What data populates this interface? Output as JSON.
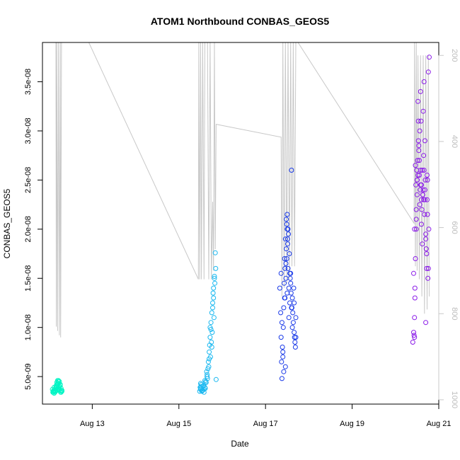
{
  "chart_data": {
    "type": "scatter",
    "title": "ATOM1 Northbound CONBAS_GEOS5",
    "xlabel": "Date",
    "ylabel": "CONBAS_GEOS5",
    "xlim_days": [
      11.85,
      21.0
    ],
    "ylim": [
      2.2e-09,
      3.9e-08
    ],
    "x_ticks": [
      {
        "day": 13,
        "label": "Aug 13"
      },
      {
        "day": 15,
        "label": "Aug 15"
      },
      {
        "day": 17,
        "label": "Aug 17"
      },
      {
        "day": 19,
        "label": "Aug 19"
      },
      {
        "day": 21,
        "label": "Aug 21"
      }
    ],
    "y_ticks": [
      {
        "value": 5e-09,
        "label": "5.0e-09"
      },
      {
        "value": 1e-08,
        "label": "1.0e-08"
      },
      {
        "value": 1.5e-08,
        "label": "1.5e-08"
      },
      {
        "value": 2e-08,
        "label": "2.0e-08"
      },
      {
        "value": 2.5e-08,
        "label": "2.5e-08"
      },
      {
        "value": 3e-08,
        "label": "3.0e-08"
      },
      {
        "value": 3.5e-08,
        "label": "3.5e-08"
      }
    ],
    "secondary_axis": {
      "label": "",
      "reversed": true,
      "range": [
        170,
        1010
      ],
      "ticks": [
        {
          "value": 200,
          "label": "200"
        },
        {
          "value": 400,
          "label": "400"
        },
        {
          "value": 600,
          "label": "600"
        },
        {
          "value": 800,
          "label": "800"
        },
        {
          "value": 1000,
          "label": "1000"
        }
      ],
      "color": "#c8c8c8"
    },
    "altitude_trace": {
      "color": "#c8c8c8",
      "points": [
        [
          12.16,
          170
        ],
        [
          12.17,
          830
        ],
        [
          12.18,
          170
        ],
        [
          12.2,
          840
        ],
        [
          12.22,
          170
        ],
        [
          12.24,
          850
        ],
        [
          12.26,
          170
        ],
        [
          12.27,
          855
        ],
        [
          12.29,
          170
        ],
        [
          12.31,
          170
        ],
        [
          12.92,
          170
        ],
        [
          15.45,
          720
        ],
        [
          15.46,
          170
        ],
        [
          15.48,
          720
        ],
        [
          15.5,
          170
        ],
        [
          15.52,
          720
        ],
        [
          15.55,
          170
        ],
        [
          15.58,
          720
        ],
        [
          15.6,
          170
        ],
        [
          15.66,
          170
        ],
        [
          15.69,
          720
        ],
        [
          15.72,
          170
        ],
        [
          15.75,
          720
        ],
        [
          15.78,
          540
        ],
        [
          15.8,
          700
        ],
        [
          15.82,
          170
        ],
        [
          15.84,
          650
        ],
        [
          15.86,
          360
        ],
        [
          17.36,
          390
        ],
        [
          17.38,
          760
        ],
        [
          17.4,
          170
        ],
        [
          17.43,
          740
        ],
        [
          17.46,
          170
        ],
        [
          17.49,
          730
        ],
        [
          17.52,
          170
        ],
        [
          17.55,
          720
        ],
        [
          17.58,
          170
        ],
        [
          17.61,
          690
        ],
        [
          17.64,
          170
        ],
        [
          17.67,
          690
        ],
        [
          17.7,
          170
        ],
        [
          17.75,
          170
        ],
        [
          20.43,
          590
        ],
        [
          20.44,
          170
        ],
        [
          20.46,
          690
        ],
        [
          20.48,
          170
        ],
        [
          20.5,
          700
        ],
        [
          20.52,
          200
        ],
        [
          20.55,
          720
        ],
        [
          20.58,
          200
        ],
        [
          20.61,
          760
        ],
        [
          20.64,
          200
        ],
        [
          20.67,
          800
        ],
        [
          20.7,
          200
        ],
        [
          20.73,
          790
        ],
        [
          20.76,
          200
        ],
        [
          20.78,
          760
        ]
      ]
    },
    "series": [
      {
        "color": "#00f5c4",
        "x": [
          12.08,
          12.1,
          12.12,
          12.14,
          12.16,
          12.18,
          12.2,
          12.22,
          12.24,
          12.26,
          12.28,
          12.3,
          12.1,
          12.14,
          12.18,
          12.22,
          12.26,
          12.3,
          12.12,
          12.16,
          12.2,
          12.24,
          12.28,
          12.15,
          12.19,
          12.23,
          12.17,
          12.21,
          12.25,
          12.13,
          12.27,
          12.11,
          12.29,
          12.09,
          12.2,
          12.18,
          12.22,
          12.24
        ],
        "y": [
          3.7e-09,
          3.5e-09,
          3.9e-09,
          3.4e-09,
          4e-09,
          3.6e-09,
          4.2e-09,
          4.3e-09,
          4.5e-09,
          4.1e-09,
          3.8e-09,
          3.5e-09,
          3.4e-09,
          3.6e-09,
          4.4e-09,
          4.6e-09,
          4.2e-09,
          3.6e-09,
          3.3e-09,
          3.8e-09,
          4.6e-09,
          4e-09,
          3.4e-09,
          3.5e-09,
          3.7e-09,
          3.9e-09,
          4.1e-09,
          3.8e-09,
          3.6e-09,
          3.5e-09,
          3.4e-09,
          3.6e-09,
          3.5e-09,
          3.4e-09,
          4.3e-09,
          3.9e-09,
          4.5e-09,
          3.7e-09
        ]
      },
      {
        "color": "#1ab8f0",
        "x": [
          15.48,
          15.5,
          15.52,
          15.54,
          15.56,
          15.58,
          15.6,
          15.62,
          15.64,
          15.66,
          15.68,
          15.7,
          15.72,
          15.74,
          15.76,
          15.78,
          15.8,
          15.82,
          15.84,
          15.5,
          15.53,
          15.57,
          15.61,
          15.65,
          15.69,
          15.73,
          15.77,
          15.81,
          15.5,
          15.55,
          15.6,
          15.65,
          15.7,
          15.75,
          15.8,
          15.85,
          15.72,
          15.76,
          15.79,
          15.83,
          15.49,
          15.51,
          15.58,
          15.63,
          15.67,
          15.71,
          15.74,
          15.78,
          15.82,
          15.86
        ],
        "y": [
          3.5e-09,
          3.8e-09,
          4.2e-09,
          3.6e-09,
          4e-09,
          3.4e-09,
          3.9e-09,
          4.5e-09,
          5.5e-09,
          4.8e-09,
          6.5e-09,
          7.5e-09,
          9e-09,
          1.05e-08,
          8e-09,
          1.2e-08,
          1.4e-08,
          1.5e-08,
          1.76e-08,
          3.7e-09,
          3.5e-09,
          4.1e-09,
          3.8e-09,
          5e-09,
          6e-09,
          7e-09,
          9.5e-09,
          1.1e-08,
          4.3e-09,
          3.6e-09,
          4.6e-09,
          5.2e-09,
          6.8e-09,
          8.5e-09,
          1.3e-08,
          1.6e-08,
          1e-08,
          1.15e-08,
          1.35e-08,
          1.45e-08,
          3.9e-09,
          4e-09,
          3.7e-09,
          4.4e-09,
          5.8e-09,
          8.2e-09,
          9.8e-09,
          1.25e-08,
          1.52e-08,
          4.7e-09
        ]
      },
      {
        "color": "#1a3ae8",
        "x": [
          17.33,
          17.35,
          17.36,
          17.38,
          17.4,
          17.42,
          17.44,
          17.46,
          17.48,
          17.5,
          17.52,
          17.54,
          17.56,
          17.58,
          17.6,
          17.62,
          17.64,
          17.66,
          17.68,
          17.7,
          17.36,
          17.39,
          17.43,
          17.47,
          17.51,
          17.55,
          17.59,
          17.63,
          17.67,
          17.37,
          17.41,
          17.45,
          17.49,
          17.53,
          17.57,
          17.61,
          17.65,
          17.69,
          17.45,
          17.48,
          17.5,
          17.52,
          17.47,
          17.49,
          17.51,
          17.38,
          17.42,
          17.46,
          17.5,
          17.54,
          17.58,
          17.62,
          17.66,
          17.7,
          17.56,
          17.6,
          17.44,
          17.4
        ],
        "y": [
          1.4e-08,
          1.15e-08,
          9e-09,
          4.8e-09,
          7e-09,
          1.2e-08,
          1.7e-08,
          1.9e-08,
          2.1e-08,
          2e-08,
          1.6e-08,
          1.4e-08,
          1.25e-08,
          1.55e-08,
          2.6e-08,
          1.3e-08,
          1.05e-08,
          9.5e-09,
          8.5e-09,
          1.1e-08,
          1.55e-08,
          8e-09,
          1.45e-08,
          1.65e-08,
          1.85e-08,
          1.75e-08,
          1.35e-08,
          1.15e-08,
          9e-09,
          6.5e-09,
          1e-08,
          1.3e-08,
          2.05e-08,
          1.95e-08,
          1.5e-08,
          1.2e-08,
          1.4e-08,
          8e-09,
          1.6e-08,
          1.8e-08,
          2.15e-08,
          2e-08,
          1.5e-08,
          1.7e-08,
          1.9e-08,
          1.05e-08,
          5.5e-09,
          6e-09,
          1.35e-08,
          1.1e-08,
          1.45e-08,
          1e-08,
          1.25e-08,
          9e-09,
          1.55e-08,
          1.2e-08,
          1.3e-08,
          7.5e-09
        ]
      },
      {
        "color": "#8a1ae8",
        "x": [
          20.4,
          20.42,
          20.44,
          20.45,
          20.46,
          20.48,
          20.5,
          20.52,
          20.54,
          20.56,
          20.58,
          20.6,
          20.62,
          20.64,
          20.66,
          20.68,
          20.7,
          20.72,
          20.74,
          20.76,
          20.78,
          20.44,
          20.47,
          20.51,
          20.55,
          20.59,
          20.63,
          20.67,
          20.71,
          20.75,
          20.45,
          20.49,
          20.53,
          20.57,
          20.61,
          20.65,
          20.69,
          20.73,
          20.77,
          20.42,
          20.44,
          20.46,
          20.48,
          20.5,
          20.52,
          20.54,
          20.56,
          20.58,
          20.6,
          20.62,
          20.64,
          20.66,
          20.68,
          20.7,
          20.72,
          20.74,
          20.76,
          20.5,
          20.55,
          20.6,
          20.65,
          20.7,
          20.48,
          20.53,
          20.58,
          20.63,
          20.68,
          20.73,
          20.43
        ],
        "y": [
          8.5e-09,
          9.5e-09,
          1.1e-08,
          1.4e-08,
          1.7e-08,
          2.2e-08,
          2.5e-08,
          3.3e-08,
          2.8e-08,
          3e-08,
          3.4e-08,
          2.3e-08,
          2.6e-08,
          3.2e-08,
          3.5e-08,
          2.4e-08,
          1.9e-08,
          1.6e-08,
          2.5e-08,
          3.6e-08,
          3.75e-08,
          2e-08,
          2.45e-08,
          2.7e-08,
          2.55e-08,
          3.1e-08,
          2.35e-08,
          2.15e-08,
          1.8e-08,
          1.5e-08,
          1.3e-08,
          2.6e-08,
          2.9e-08,
          2.4e-08,
          2.2e-08,
          2.75e-08,
          2.5e-08,
          2.3e-08,
          2e-08,
          1.55e-08,
          9e-09,
          2.65e-08,
          2.1e-08,
          2.35e-08,
          2.55e-08,
          2.85e-08,
          2.25e-08,
          2.45e-08,
          2.05e-08,
          1.85e-08,
          2.4e-08,
          2.6e-08,
          2.3e-08,
          1.95e-08,
          1.75e-08,
          2.15e-08,
          1.6e-08,
          2.5e-08,
          2.7e-08,
          2.45e-08,
          2.3e-08,
          1.05e-08,
          2e-08,
          3.1e-08,
          2.6e-08,
          2.35e-08,
          2.9e-08,
          2.55e-08,
          9.2e-09
        ]
      }
    ]
  }
}
